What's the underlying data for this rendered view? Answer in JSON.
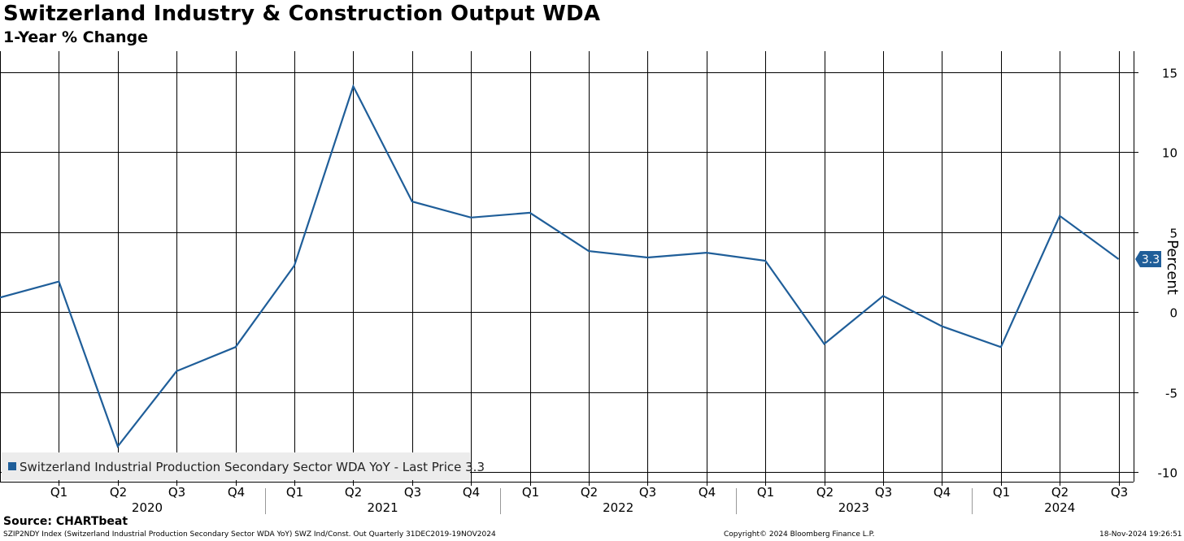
{
  "header": {
    "title": "Switzerland Industry & Construction Output WDA",
    "subtitle": "1-Year % Change"
  },
  "footer": {
    "source": "Source: CHARTbeat",
    "ticker_line": "SZIP2NDY Index (Switzerland Industrial Production Secondary Sector WDA YoY) SWZ Ind/Const. Out  Quarterly 31DEC2019-19NOV2024",
    "copyright": "Copyright© 2024 Bloomberg Finance L.P.",
    "timestamp": "18-Nov-2024 19:26:51"
  },
  "legend": {
    "label": "Switzerland Industrial Production Secondary Sector WDA YoY - Last Price 3.3"
  },
  "colors": {
    "series": "#1f5e99",
    "grid": "#000000",
    "last_price_bg": "#1f5e99"
  },
  "chart_data": {
    "type": "line",
    "title": "Switzerland Industry & Construction Output WDA",
    "subtitle": "1-Year % Change",
    "xlabel": "",
    "ylabel": "Percent",
    "ylim": [
      -10,
      16
    ],
    "yticks": [
      15,
      10,
      5,
      0,
      -5,
      -10
    ],
    "grid": true,
    "y_axis_side": "right",
    "last_price": 3.3,
    "last_price_label": "3.3",
    "quarter_labels": [
      "Q1",
      "Q2",
      "Q3",
      "Q4",
      "Q1",
      "Q2",
      "Q3",
      "Q4",
      "Q1",
      "Q2",
      "Q3",
      "Q4",
      "Q1",
      "Q2",
      "Q3",
      "Q4",
      "Q1",
      "Q2",
      "Q3"
    ],
    "year_labels": [
      "2020",
      "2021",
      "2022",
      "2023",
      "2024"
    ],
    "x": [
      "2019 Q4",
      "2020 Q1",
      "2020 Q2",
      "2020 Q3",
      "2020 Q4",
      "2021 Q1",
      "2021 Q2",
      "2021 Q3",
      "2021 Q4",
      "2022 Q1",
      "2022 Q2",
      "2022 Q3",
      "2022 Q4",
      "2023 Q1",
      "2023 Q2",
      "2023 Q3",
      "2023 Q4",
      "2024 Q1",
      "2024 Q2",
      "2024 Q3"
    ],
    "series": [
      {
        "name": "Switzerland Industrial Production Secondary Sector WDA YoY",
        "values": [
          0.9,
          1.9,
          -8.4,
          -3.7,
          -2.2,
          2.9,
          14.1,
          6.9,
          5.9,
          6.2,
          3.8,
          3.4,
          3.7,
          3.2,
          -2.0,
          1.0,
          -0.9,
          -2.2,
          6.0,
          3.3
        ]
      }
    ]
  }
}
